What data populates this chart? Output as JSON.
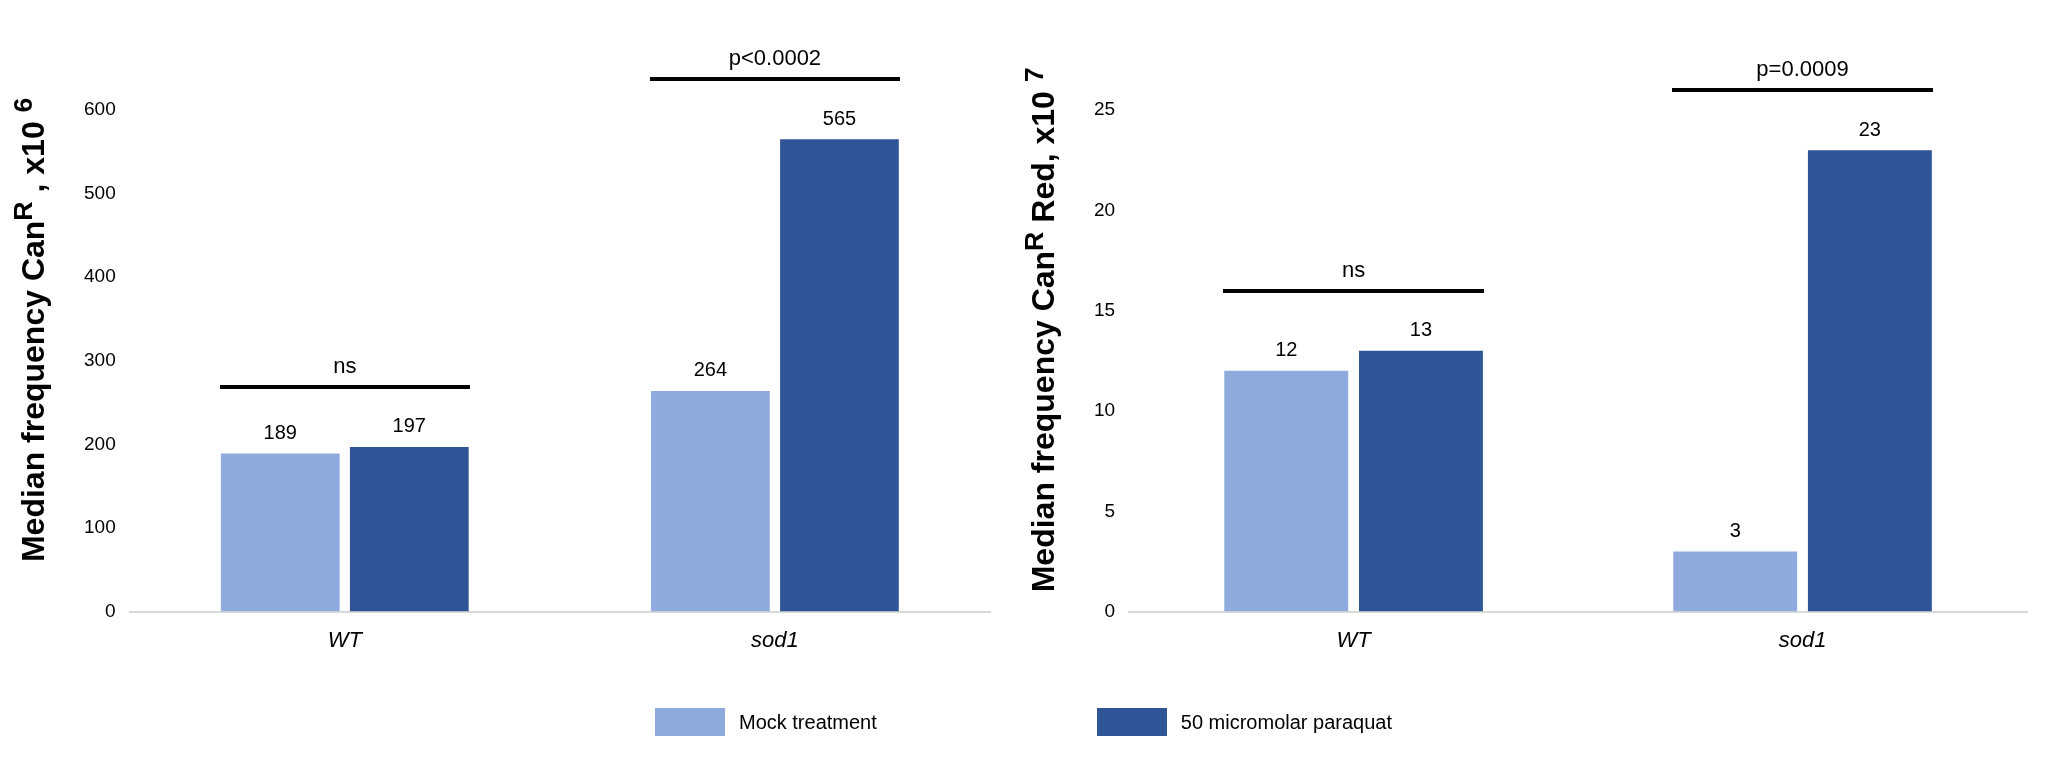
{
  "chart_data": [
    {
      "type": "bar",
      "ylabel": "Median frequency Can$^{R}$ , x10 $^{6}$",
      "categories": [
        "WT",
        "sod1"
      ],
      "series": [
        {
          "name": "Mock treatment",
          "color": "#8faadc",
          "values": [
            189,
            264
          ]
        },
        {
          "name": "50 micromolar paraquat",
          "color": "#2f5597",
          "values": [
            197,
            565
          ]
        }
      ],
      "ylim": [
        0,
        600
      ],
      "yticks": [
        0,
        100,
        200,
        300,
        400,
        500,
        600
      ],
      "grid": false,
      "legend": "bottom",
      "data_labels": true,
      "annotations": [
        "ns",
        "p<0.0002"
      ]
    },
    {
      "type": "bar",
      "ylabel": "Median frequency Can$^{R}$ Red, x10 $^{7}$",
      "categories": [
        "WT",
        "sod1"
      ],
      "series": [
        {
          "color": "#8faadc",
          "values": [
            12,
            3
          ]
        },
        {
          "color": "#2f5597",
          "values": [
            13,
            23
          ]
        }
      ],
      "ylim": [
        0,
        25
      ],
      "yticks": [
        0,
        5,
        10,
        15,
        20,
        25
      ],
      "grid": false,
      "data_labels": true,
      "annotations": [
        "ns",
        "p=0.0009"
      ]
    }
  ]
}
